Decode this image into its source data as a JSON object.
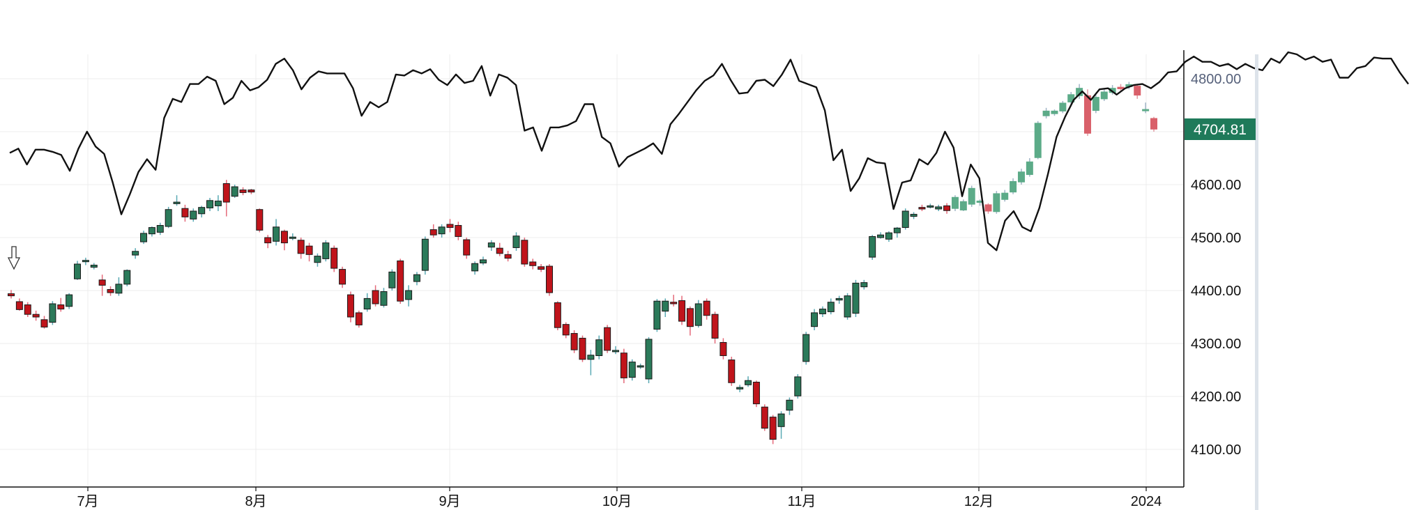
{
  "chart_data": {
    "type": "candlestick",
    "title": "",
    "xlabel": "",
    "ylabel": "",
    "ylim": [
      4030,
      4918
    ],
    "y_ticks": [
      4800,
      4700,
      4600,
      4500,
      4400,
      4300,
      4200,
      4100
    ],
    "y_tick_labels": [
      "4800.00",
      "4600.00",
      "4500.00",
      "4400.00",
      "4300.00",
      "4200.00",
      "4100.00"
    ],
    "x_tick_labels": [
      "7月",
      "8月",
      "9月",
      "10月",
      "11月",
      "12月",
      "2024"
    ],
    "current_price_label": "4704.81",
    "grid": true,
    "colors": {
      "up": "#2b7a5a",
      "down": "#c0141b",
      "up_faded": "#5cab88",
      "down_faded": "#d9606a",
      "overlay": "#111111",
      "price_tag": "#1f7a5a",
      "grid": "#ececec"
    },
    "marker_icon": "arrow-down-outline-icon",
    "candles": [
      [
        4394,
        4390,
        4401,
        4385
      ],
      [
        4379,
        4364,
        4385,
        4362
      ],
      [
        4373,
        4355,
        4378,
        4350
      ],
      [
        4355,
        4350,
        4362,
        4343
      ],
      [
        4345,
        4331,
        4352,
        4328
      ],
      [
        4340,
        4375,
        4380,
        4335
      ],
      [
        4373,
        4365,
        4386,
        4360
      ],
      [
        4370,
        4392,
        4395,
        4365
      ],
      [
        4422,
        4450,
        4456,
        4420
      ],
      [
        4455,
        4457,
        4462,
        4448
      ],
      [
        4444,
        4448,
        4452,
        4440
      ],
      [
        4420,
        4410,
        4430,
        4390
      ],
      [
        4402,
        4396,
        4408,
        4390
      ],
      [
        4395,
        4412,
        4425,
        4390
      ],
      [
        4412,
        4438,
        4440,
        4408
      ],
      [
        4467,
        4474,
        4480,
        4460
      ],
      [
        4492,
        4508,
        4513,
        4488
      ],
      [
        4507,
        4519,
        4521,
        4502
      ],
      [
        4510,
        4523,
        4528,
        4505
      ],
      [
        4521,
        4553,
        4558,
        4518
      ],
      [
        4564,
        4567,
        4580,
        4560
      ],
      [
        4555,
        4539,
        4562,
        4530
      ],
      [
        4535,
        4550,
        4555,
        4530
      ],
      [
        4545,
        4557,
        4560,
        4538
      ],
      [
        4556,
        4570,
        4575,
        4550
      ],
      [
        4560,
        4569,
        4580,
        4550
      ],
      [
        4602,
        4567,
        4609,
        4540
      ],
      [
        4578,
        4596,
        4600,
        4575
      ],
      [
        4590,
        4585,
        4595,
        4580
      ],
      [
        4590,
        4586,
        4592,
        4582
      ],
      [
        4553,
        4514,
        4555,
        4510
      ],
      [
        4500,
        4490,
        4505,
        4480
      ],
      [
        4493,
        4520,
        4535,
        4485
      ],
      [
        4512,
        4490,
        4515,
        4476
      ],
      [
        4499,
        4501,
        4508,
        4495
      ],
      [
        4495,
        4470,
        4500,
        4460
      ],
      [
        4484,
        4468,
        4490,
        4455
      ],
      [
        4453,
        4465,
        4470,
        4445
      ],
      [
        4460,
        4490,
        4495,
        4455
      ],
      [
        4480,
        4442,
        4485,
        4435
      ],
      [
        4440,
        4412,
        4445,
        4405
      ],
      [
        4392,
        4350,
        4398,
        4340
      ],
      [
        4358,
        4335,
        4362,
        4330
      ],
      [
        4365,
        4385,
        4395,
        4360
      ],
      [
        4400,
        4375,
        4410,
        4370
      ],
      [
        4372,
        4398,
        4405,
        4368
      ],
      [
        4405,
        4435,
        4440,
        4400
      ],
      [
        4456,
        4380,
        4460,
        4375
      ],
      [
        4383,
        4400,
        4410,
        4370
      ],
      [
        4417,
        4430,
        4435,
        4410
      ],
      [
        4438,
        4497,
        4502,
        4430
      ],
      [
        4515,
        4505,
        4525,
        4500
      ],
      [
        4507,
        4520,
        4525,
        4500
      ],
      [
        4525,
        4519,
        4535,
        4510
      ],
      [
        4523,
        4502,
        4530,
        4495
      ],
      [
        4496,
        4467,
        4500,
        4460
      ],
      [
        4437,
        4451,
        4455,
        4430
      ],
      [
        4452,
        4458,
        4464,
        4448
      ],
      [
        4482,
        4490,
        4495,
        4475
      ],
      [
        4480,
        4470,
        4490,
        4465
      ],
      [
        4468,
        4461,
        4475,
        4455
      ],
      [
        4481,
        4503,
        4510,
        4475
      ],
      [
        4495,
        4450,
        4500,
        4445
      ],
      [
        4454,
        4447,
        4460,
        4440
      ],
      [
        4445,
        4440,
        4450,
        4435
      ],
      [
        4446,
        4396,
        4450,
        4390
      ],
      [
        4377,
        4330,
        4380,
        4325
      ],
      [
        4336,
        4316,
        4340,
        4310
      ],
      [
        4319,
        4288,
        4325,
        4282
      ],
      [
        4310,
        4270,
        4315,
        4265
      ],
      [
        4270,
        4278,
        4288,
        4240
      ],
      [
        4277,
        4307,
        4315,
        4270
      ],
      [
        4330,
        4287,
        4335,
        4282
      ],
      [
        4286,
        4287,
        4295,
        4280
      ],
      [
        4282,
        4235,
        4290,
        4225
      ],
      [
        4236,
        4265,
        4270,
        4230
      ],
      [
        4258,
        4258,
        4262,
        4252
      ],
      [
        4233,
        4308,
        4312,
        4225
      ],
      [
        4327,
        4380,
        4384,
        4322
      ],
      [
        4361,
        4380,
        4385,
        4350
      ],
      [
        4378,
        4375,
        4392,
        4370
      ],
      [
        4381,
        4342,
        4390,
        4335
      ],
      [
        4366,
        4332,
        4370,
        4315
      ],
      [
        4334,
        4375,
        4382,
        4330
      ],
      [
        4380,
        4353,
        4385,
        4345
      ],
      [
        4355,
        4310,
        4360,
        4300
      ],
      [
        4302,
        4277,
        4310,
        4270
      ],
      [
        4269,
        4226,
        4275,
        4220
      ],
      [
        4214,
        4217,
        4222,
        4208
      ],
      [
        4222,
        4230,
        4238,
        4218
      ],
      [
        4227,
        4186,
        4230,
        4180
      ],
      [
        4180,
        4140,
        4185,
        4135
      ],
      [
        4161,
        4119,
        4165,
        4110
      ],
      [
        4143,
        4167,
        4172,
        4120
      ],
      [
        4174,
        4193,
        4198,
        4165
      ],
      [
        4201,
        4237,
        4242,
        4196
      ],
      [
        4266,
        4317,
        4322,
        4260
      ],
      [
        4332,
        4358,
        4365,
        4325
      ],
      [
        4356,
        4365,
        4370,
        4350
      ],
      [
        4360,
        4378,
        4385,
        4355
      ],
      [
        4382,
        4385,
        4390,
        4375
      ],
      [
        4350,
        4390,
        4395,
        4345
      ],
      [
        4357,
        4414,
        4420,
        4350
      ],
      [
        4407,
        4415,
        4420,
        4402
      ],
      [
        4463,
        4502,
        4505,
        4458
      ],
      [
        4500,
        4505,
        4510,
        4498
      ],
      [
        4497,
        4509,
        4512,
        4492
      ],
      [
        4509,
        4518,
        4520,
        4500
      ],
      [
        4519,
        4550,
        4555,
        4515
      ],
      [
        4540,
        4544,
        4548,
        4535
      ],
      [
        4557,
        4554,
        4562,
        4550
      ],
      [
        4559,
        4560,
        4564,
        4555
      ],
      [
        4554,
        4558,
        4562,
        4550
      ],
      [
        4560,
        4551,
        4565,
        4545
      ],
      [
        4555,
        4576,
        4580,
        4550
      ],
      [
        4552,
        4568,
        4572,
        4550
      ],
      [
        4563,
        4593,
        4598,
        4558
      ],
      [
        4567,
        4569,
        4572,
        4560
      ],
      [
        4562,
        4550,
        4565,
        4545
      ],
      [
        4549,
        4583,
        4588,
        4545
      ],
      [
        4572,
        4584,
        4590,
        4568
      ],
      [
        4586,
        4606,
        4612,
        4582
      ],
      [
        4605,
        4624,
        4630,
        4600
      ],
      [
        4619,
        4643,
        4650,
        4615
      ],
      [
        4651,
        4716,
        4720,
        4648
      ],
      [
        4730,
        4739,
        4745,
        4725
      ],
      [
        4734,
        4739,
        4742,
        4730
      ],
      [
        4739,
        4754,
        4758,
        4735
      ],
      [
        4756,
        4770,
        4775,
        4750
      ],
      [
        4768,
        4782,
        4790,
        4762
      ],
      [
        4768,
        4697,
        4780,
        4692
      ],
      [
        4740,
        4765,
        4770,
        4735
      ],
      [
        4762,
        4775,
        4780,
        4758
      ],
      [
        4774,
        4782,
        4788,
        4770
      ],
      [
        4784,
        4781,
        4790,
        4778
      ],
      [
        4785,
        4789,
        4794,
        4780
      ],
      [
        4786,
        4769,
        4790,
        4762
      ],
      [
        4740,
        4742,
        4755,
        4735
      ],
      [
        4725,
        4704.81,
        4728,
        4700
      ]
    ],
    "overlay_series": [
      4660,
      4668,
      4638,
      4666,
      4666,
      4662,
      4656,
      4626,
      4668,
      4700,
      4672,
      4658,
      4604,
      4544,
      4582,
      4624,
      4648,
      4628,
      4726,
      4762,
      4756,
      4790,
      4790,
      4804,
      4796,
      4752,
      4764,
      4796,
      4778,
      4784,
      4798,
      4828,
      4838,
      4816,
      4780,
      4802,
      4814,
      4810,
      4810,
      4810,
      4782,
      4730,
      4756,
      4746,
      4756,
      4808,
      4806,
      4816,
      4810,
      4818,
      4798,
      4788,
      4808,
      4792,
      4796,
      4824,
      4768,
      4808,
      4802,
      4788,
      4702,
      4708,
      4664,
      4708,
      4708,
      4712,
      4720,
      4752,
      4752,
      4690,
      4678,
      4634,
      4652,
      4660,
      4668,
      4678,
      4658,
      4714,
      4734,
      4756,
      4778,
      4796,
      4806,
      4828,
      4798,
      4772,
      4774,
      4796,
      4798,
      4786,
      4808,
      4836,
      4796,
      4790,
      4784,
      4740,
      4646,
      4666,
      4588,
      4612,
      4650,
      4642,
      4640,
      4554,
      4604,
      4608,
      4648,
      4638,
      4660,
      4700,
      4670,
      4578,
      4638,
      4612,
      4490,
      4476,
      4532,
      4550,
      4520,
      4512,
      4556,
      4620,
      4690,
      4728,
      4760,
      4776,
      4760,
      4780,
      4782,
      4770,
      4782,
      4788,
      4790,
      4782,
      4794,
      4812,
      4814,
      4832,
      4842,
      4832,
      4832,
      4824,
      4828,
      4818,
      4828,
      4820,
      4816,
      4838,
      4830,
      4850,
      4846,
      4836,
      4842,
      4832,
      4836,
      4802,
      4802,
      4820,
      4824,
      4840,
      4838,
      4838,
      4812,
      4790
    ]
  }
}
